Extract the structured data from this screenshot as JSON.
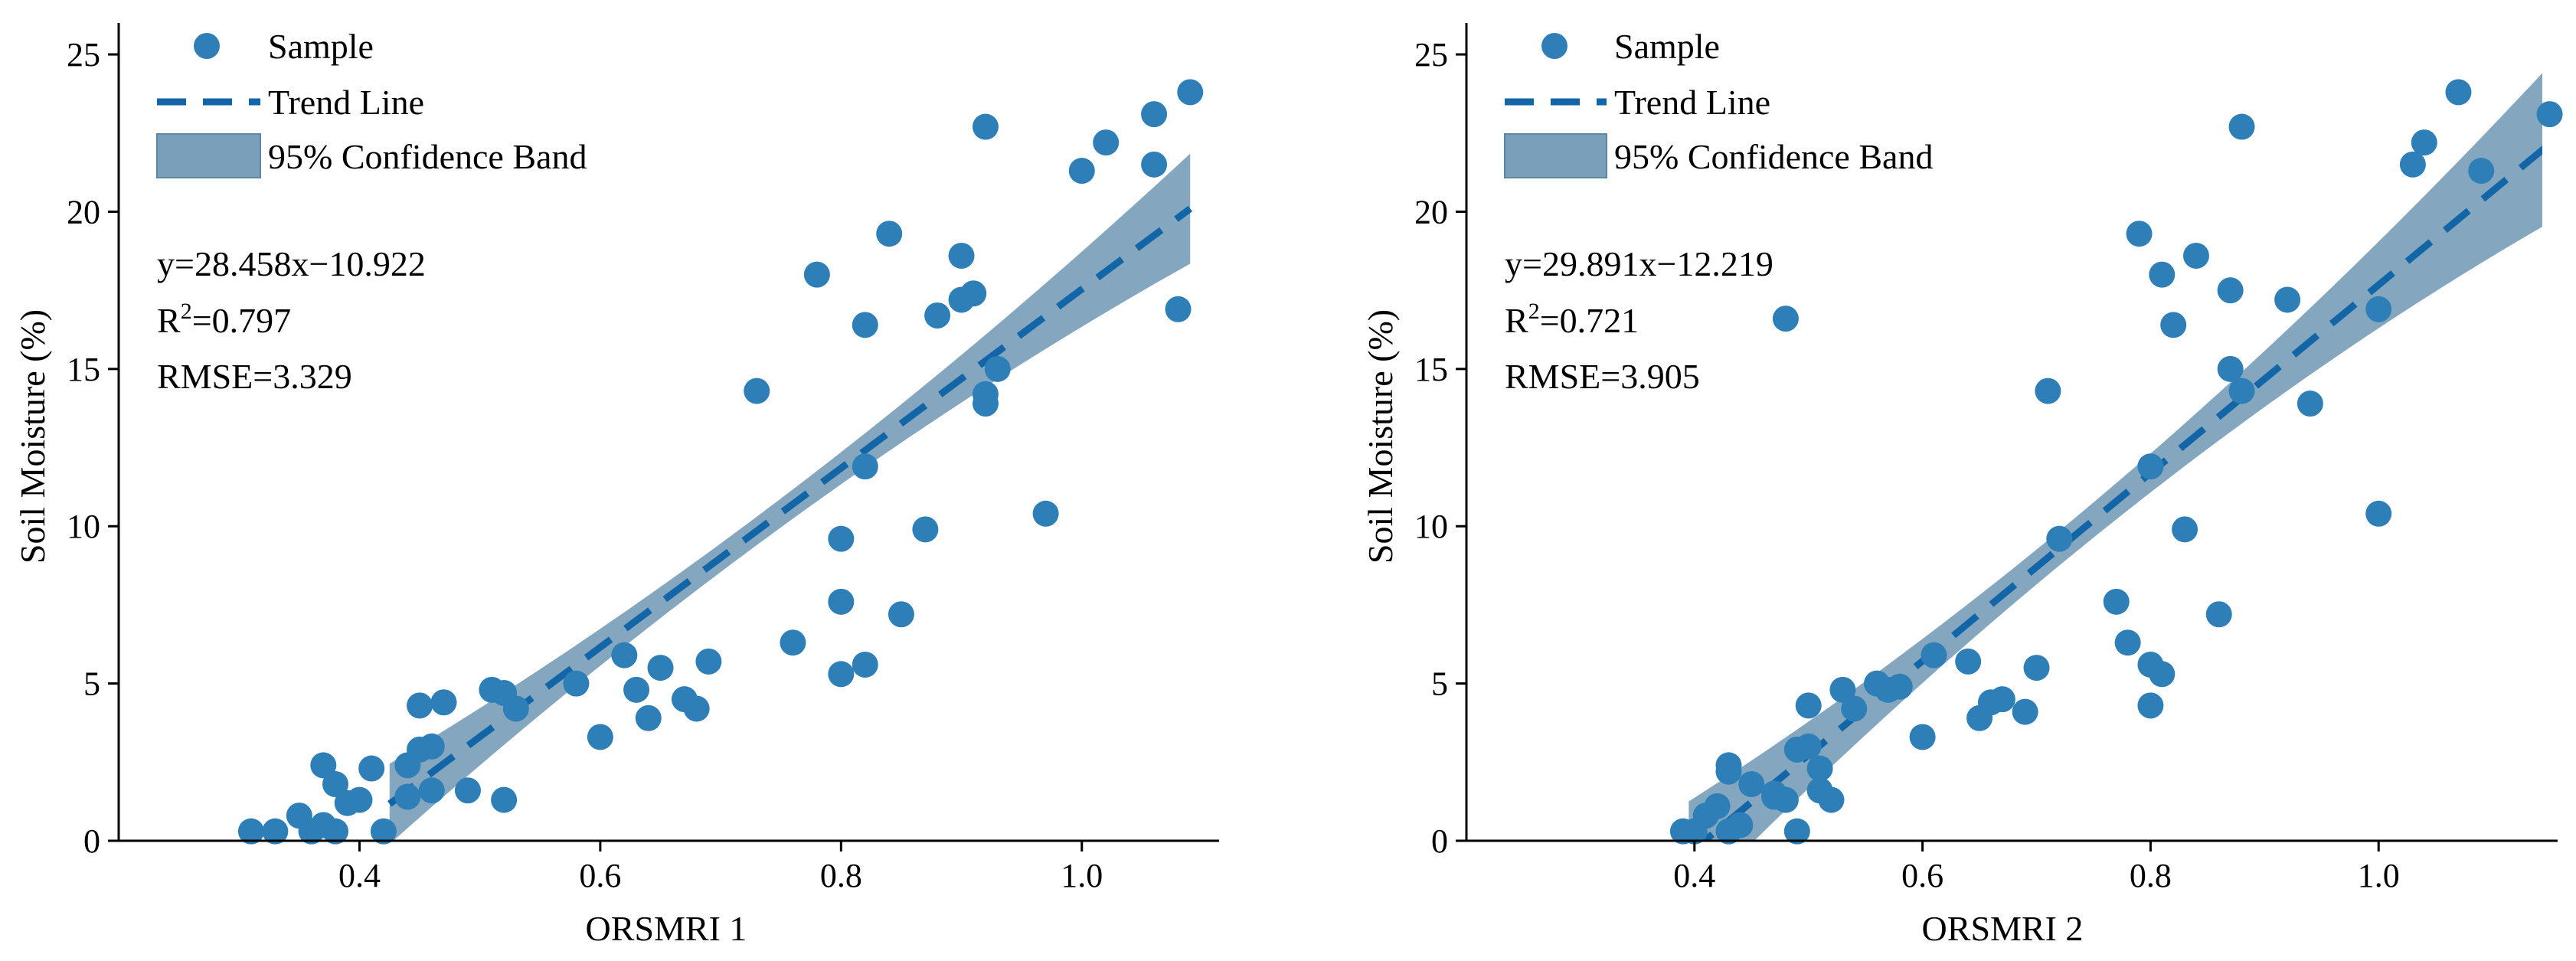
{
  "colors": {
    "point": "#2e7fb8",
    "line": "#1265a6",
    "band": "#7a9fba"
  },
  "chart_data": [
    {
      "type": "scatter",
      "xlabel": "ORSMRI 1",
      "ylabel": "Soil Moisture  (%)",
      "xlim": [
        0.2,
        1.1
      ],
      "ylim": [
        0,
        26
      ],
      "xticks": [
        0.4,
        0.6,
        0.8,
        1.0
      ],
      "yticks": [
        0,
        5,
        10,
        15,
        20,
        25
      ],
      "xtick_labels": [
        "0.4",
        "0.6",
        "0.8",
        "1.0"
      ],
      "ytick_labels": [
        "0",
        "5",
        "10",
        "15",
        "20",
        "25"
      ],
      "legend": {
        "sample": "Sample",
        "trend": "Trend Line",
        "band": "95% Confidence Band"
      },
      "equation": "y=28.458x−10.922",
      "r2_prefix": "R",
      "r2_sup": "2",
      "r2_value": "=0.797",
      "rmse": "RMSE=3.329",
      "trend": {
        "slope": 28.458,
        "intercept": -10.922,
        "x_start": 0.425,
        "x_end": 1.09
      },
      "band": {
        "half_width_min": 0.45,
        "half_width_max": 1.75,
        "x_center": 0.72
      },
      "points": [
        [
          0.31,
          0.3
        ],
        [
          0.33,
          0.3
        ],
        [
          0.35,
          0.8
        ],
        [
          0.36,
          0.3
        ],
        [
          0.37,
          0.5
        ],
        [
          0.37,
          2.4
        ],
        [
          0.38,
          1.8
        ],
        [
          0.38,
          0.3
        ],
        [
          0.39,
          1.2
        ],
        [
          0.4,
          1.3
        ],
        [
          0.41,
          2.3
        ],
        [
          0.42,
          0.3
        ],
        [
          0.44,
          2.4
        ],
        [
          0.44,
          1.4
        ],
        [
          0.45,
          4.3
        ],
        [
          0.45,
          2.9
        ],
        [
          0.46,
          3.0
        ],
        [
          0.46,
          1.6
        ],
        [
          0.47,
          4.4
        ],
        [
          0.49,
          1.6
        ],
        [
          0.51,
          4.8
        ],
        [
          0.52,
          4.7
        ],
        [
          0.52,
          1.3
        ],
        [
          0.53,
          4.2
        ],
        [
          0.58,
          5.0
        ],
        [
          0.6,
          3.3
        ],
        [
          0.62,
          5.9
        ],
        [
          0.63,
          4.8
        ],
        [
          0.64,
          3.9
        ],
        [
          0.65,
          5.5
        ],
        [
          0.67,
          4.5
        ],
        [
          0.68,
          4.2
        ],
        [
          0.69,
          5.7
        ],
        [
          0.73,
          14.3
        ],
        [
          0.76,
          6.3
        ],
        [
          0.78,
          18.0
        ],
        [
          0.8,
          5.3
        ],
        [
          0.8,
          7.6
        ],
        [
          0.8,
          9.6
        ],
        [
          0.82,
          16.4
        ],
        [
          0.82,
          5.6
        ],
        [
          0.82,
          11.9
        ],
        [
          0.84,
          19.3
        ],
        [
          0.85,
          7.2
        ],
        [
          0.87,
          9.9
        ],
        [
          0.88,
          16.7
        ],
        [
          0.9,
          17.2
        ],
        [
          0.9,
          18.6
        ],
        [
          0.91,
          17.4
        ],
        [
          0.92,
          14.2
        ],
        [
          0.92,
          22.7
        ],
        [
          0.92,
          13.9
        ],
        [
          0.93,
          15.0
        ],
        [
          0.97,
          10.4
        ],
        [
          1.0,
          21.3
        ],
        [
          1.02,
          22.2
        ],
        [
          1.06,
          23.1
        ],
        [
          1.06,
          21.5
        ],
        [
          1.08,
          16.9
        ],
        [
          1.09,
          23.8
        ]
      ]
    },
    {
      "type": "scatter",
      "xlabel": "ORSMRI 2",
      "ylabel": "Soil Moisture  (%)",
      "xlim": [
        0.2,
        1.15
      ],
      "ylim": [
        0,
        26
      ],
      "xticks": [
        0.4,
        0.6,
        0.8,
        1.0
      ],
      "yticks": [
        0,
        5,
        10,
        15,
        20,
        25
      ],
      "xtick_labels": [
        "0.4",
        "0.6",
        "0.8",
        "1.0"
      ],
      "ytick_labels": [
        "0",
        "5",
        "10",
        "15",
        "20",
        "25"
      ],
      "legend": {
        "sample": "Sample",
        "trend": "Trend Line",
        "band": "95% Confidence Band"
      },
      "equation": "y=29.891x−12.219",
      "r2_prefix": "R",
      "r2_sup": "2",
      "r2_value": "=0.721",
      "rmse": "RMSE=3.905",
      "trend": {
        "slope": 29.891,
        "intercept": -12.219,
        "x_start": 0.395,
        "x_end": 1.15
      },
      "band": {
        "half_width_min": 0.55,
        "half_width_max": 2.5,
        "x_center": 0.72
      },
      "points": [
        [
          0.39,
          0.3
        ],
        [
          0.4,
          0.3
        ],
        [
          0.41,
          0.8
        ],
        [
          0.42,
          1.1
        ],
        [
          0.43,
          2.4
        ],
        [
          0.43,
          2.2
        ],
        [
          0.43,
          0.3
        ],
        [
          0.44,
          0.5
        ],
        [
          0.45,
          1.8
        ],
        [
          0.47,
          1.4
        ],
        [
          0.47,
          1.5
        ],
        [
          0.48,
          1.3
        ],
        [
          0.48,
          16.6
        ],
        [
          0.49,
          2.9
        ],
        [
          0.49,
          0.3
        ],
        [
          0.5,
          4.3
        ],
        [
          0.5,
          3.0
        ],
        [
          0.51,
          2.3
        ],
        [
          0.51,
          1.6
        ],
        [
          0.52,
          1.3
        ],
        [
          0.53,
          4.8
        ],
        [
          0.54,
          4.2
        ],
        [
          0.56,
          5.0
        ],
        [
          0.57,
          4.8
        ],
        [
          0.58,
          4.9
        ],
        [
          0.6,
          3.3
        ],
        [
          0.61,
          5.9
        ],
        [
          0.64,
          5.7
        ],
        [
          0.65,
          3.9
        ],
        [
          0.66,
          4.4
        ],
        [
          0.67,
          4.5
        ],
        [
          0.69,
          4.1
        ],
        [
          0.7,
          5.5
        ],
        [
          0.71,
          14.3
        ],
        [
          0.72,
          9.6
        ],
        [
          0.77,
          7.6
        ],
        [
          0.78,
          6.3
        ],
        [
          0.79,
          19.3
        ],
        [
          0.8,
          5.6
        ],
        [
          0.8,
          11.9
        ],
        [
          0.8,
          4.3
        ],
        [
          0.81,
          18.0
        ],
        [
          0.81,
          5.3
        ],
        [
          0.82,
          16.4
        ],
        [
          0.83,
          9.9
        ],
        [
          0.84,
          18.6
        ],
        [
          0.86,
          7.2
        ],
        [
          0.87,
          17.5
        ],
        [
          0.87,
          15.0
        ],
        [
          0.88,
          22.7
        ],
        [
          0.88,
          14.3
        ],
        [
          0.92,
          17.2
        ],
        [
          0.94,
          13.9
        ],
        [
          1.0,
          16.9
        ],
        [
          1.0,
          10.4
        ],
        [
          1.03,
          21.5
        ],
        [
          1.04,
          22.2
        ],
        [
          1.07,
          23.8
        ],
        [
          1.09,
          21.3
        ],
        [
          1.15,
          23.1
        ]
      ]
    }
  ]
}
